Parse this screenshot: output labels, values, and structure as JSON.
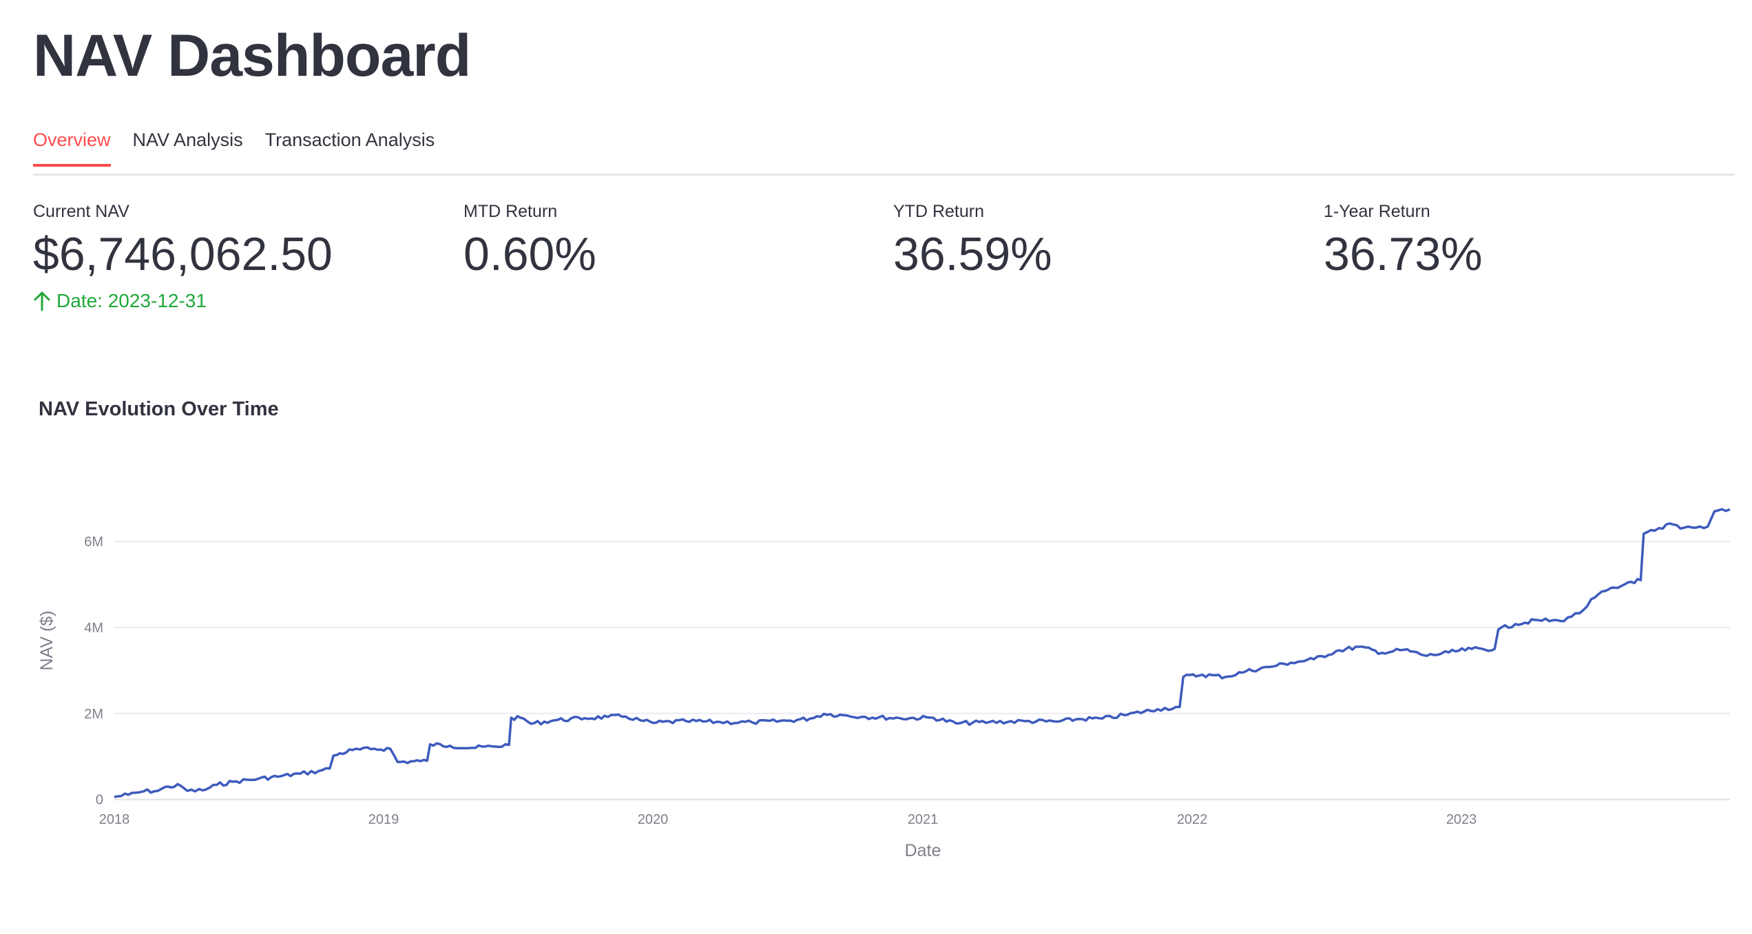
{
  "header": {
    "title": "NAV Dashboard"
  },
  "tabs": [
    {
      "label": "Overview",
      "active": true
    },
    {
      "label": "NAV Analysis",
      "active": false
    },
    {
      "label": "Transaction Analysis",
      "active": false
    }
  ],
  "metrics": [
    {
      "label": "Current NAV",
      "value": "$6,746,062.50",
      "delta": "Date: 2023-12-31",
      "delta_direction": "up",
      "delta_color": "#21a83a"
    },
    {
      "label": "MTD Return",
      "value": "0.60%"
    },
    {
      "label": "YTD Return",
      "value": "36.59%"
    },
    {
      "label": "1-Year Return",
      "value": "36.73%"
    }
  ],
  "colors": {
    "accent": "#ff4b4b",
    "line": "#3d5bbd",
    "positive": "#21a83a"
  },
  "chart_data": {
    "type": "line",
    "title": "NAV Evolution Over Time",
    "xlabel": "Date",
    "ylabel": "NAV ($)",
    "x_ticks": [
      "2018",
      "2019",
      "2020",
      "2021",
      "2022",
      "2023"
    ],
    "y_ticks": [
      {
        "value": 0,
        "label": "0"
      },
      {
        "value": 2000000,
        "label": "2M"
      },
      {
        "value": 4000000,
        "label": "4M"
      },
      {
        "value": 6000000,
        "label": "6M"
      }
    ],
    "xlim": [
      "2018-01-01",
      "2023-12-31"
    ],
    "ylim": [
      -150000,
      7700000
    ],
    "grid": true,
    "series": [
      {
        "points": [
          [
            "2018-01-01",
            60000
          ],
          [
            "2018-01-20",
            110000
          ],
          [
            "2018-02-10",
            190000
          ],
          [
            "2018-03-01",
            200000
          ],
          [
            "2018-03-15",
            300000
          ],
          [
            "2018-04-01",
            320000
          ],
          [
            "2018-04-10",
            200000
          ],
          [
            "2018-05-01",
            210000
          ],
          [
            "2018-05-20",
            340000
          ],
          [
            "2018-06-15",
            420000
          ],
          [
            "2018-07-15",
            480000
          ],
          [
            "2018-08-15",
            540000
          ],
          [
            "2018-09-10",
            600000
          ],
          [
            "2018-10-05",
            660000
          ],
          [
            "2018-10-20",
            720000
          ],
          [
            "2018-10-25",
            1020000
          ],
          [
            "2018-11-20",
            1150000
          ],
          [
            "2018-12-15",
            1170000
          ],
          [
            "2019-01-10",
            1180000
          ],
          [
            "2019-01-20",
            870000
          ],
          [
            "2019-02-20",
            890000
          ],
          [
            "2019-03-01",
            900000
          ],
          [
            "2019-03-05",
            1280000
          ],
          [
            "2019-04-01",
            1250000
          ],
          [
            "2019-05-01",
            1200000
          ],
          [
            "2019-06-01",
            1230000
          ],
          [
            "2019-06-20",
            1270000
          ],
          [
            "2019-06-23",
            1900000
          ],
          [
            "2019-07-10",
            1880000
          ],
          [
            "2019-07-20",
            1760000
          ],
          [
            "2019-08-20",
            1840000
          ],
          [
            "2019-10-01",
            1890000
          ],
          [
            "2019-11-01",
            1920000
          ],
          [
            "2019-11-25",
            1930000
          ],
          [
            "2019-12-15",
            1840000
          ],
          [
            "2020-01-01",
            1780000
          ],
          [
            "2020-02-15",
            1820000
          ],
          [
            "2020-04-01",
            1800000
          ],
          [
            "2020-05-15",
            1790000
          ],
          [
            "2020-07-01",
            1830000
          ],
          [
            "2020-08-01",
            1880000
          ],
          [
            "2020-08-20",
            1990000
          ],
          [
            "2020-09-15",
            1960000
          ],
          [
            "2020-10-15",
            1920000
          ],
          [
            "2020-12-01",
            1890000
          ],
          [
            "2021-01-15",
            1900000
          ],
          [
            "2021-02-15",
            1770000
          ],
          [
            "2021-04-01",
            1800000
          ],
          [
            "2021-05-20",
            1820000
          ],
          [
            "2021-07-01",
            1810000
          ],
          [
            "2021-08-01",
            1870000
          ],
          [
            "2021-09-01",
            1880000
          ],
          [
            "2021-10-01",
            1960000
          ],
          [
            "2021-11-15",
            2100000
          ],
          [
            "2021-12-15",
            2150000
          ],
          [
            "2021-12-20",
            2850000
          ],
          [
            "2022-01-15",
            2900000
          ],
          [
            "2022-02-15",
            2850000
          ],
          [
            "2022-03-15",
            2980000
          ],
          [
            "2022-04-15",
            3080000
          ],
          [
            "2022-05-15",
            3180000
          ],
          [
            "2022-06-15",
            3260000
          ],
          [
            "2022-07-15",
            3450000
          ],
          [
            "2022-08-15",
            3550000
          ],
          [
            "2022-09-15",
            3410000
          ],
          [
            "2022-10-15",
            3480000
          ],
          [
            "2022-11-15",
            3340000
          ],
          [
            "2022-12-15",
            3420000
          ],
          [
            "2023-01-15",
            3500000
          ],
          [
            "2023-02-15",
            3500000
          ],
          [
            "2023-02-20",
            3950000
          ],
          [
            "2023-03-15",
            4080000
          ],
          [
            "2023-04-15",
            4170000
          ],
          [
            "2023-05-15",
            4150000
          ],
          [
            "2023-05-25",
            4230000
          ],
          [
            "2023-06-10",
            4330000
          ],
          [
            "2023-07-01",
            4700000
          ],
          [
            "2023-07-15",
            4850000
          ],
          [
            "2023-08-01",
            4920000
          ],
          [
            "2023-08-15",
            5050000
          ],
          [
            "2023-09-01",
            5100000
          ],
          [
            "2023-09-05",
            6180000
          ],
          [
            "2023-09-20",
            6250000
          ],
          [
            "2023-10-01",
            6300000
          ],
          [
            "2023-10-10",
            6420000
          ],
          [
            "2023-10-25",
            6300000
          ],
          [
            "2023-11-15",
            6320000
          ],
          [
            "2023-12-01",
            6350000
          ],
          [
            "2023-12-10",
            6700000
          ],
          [
            "2023-12-20",
            6750000
          ],
          [
            "2023-12-31",
            6746062
          ]
        ]
      }
    ]
  }
}
